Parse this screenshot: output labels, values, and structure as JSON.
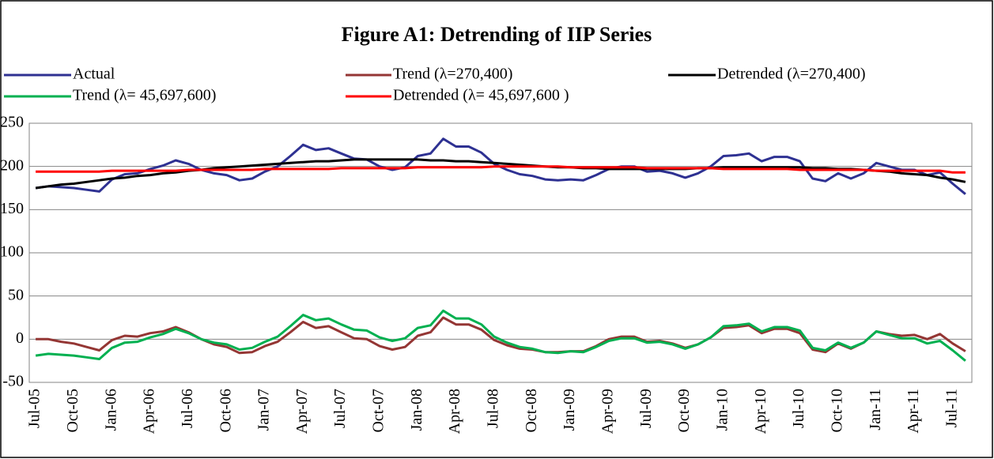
{
  "chart_data": {
    "type": "line",
    "title": "Figure A1: Detrending of IIP Series",
    "categories": [
      "Jul-05",
      null,
      null,
      "Oct-05",
      null,
      null,
      "Jan-06",
      null,
      null,
      "Apr-06",
      null,
      null,
      "Jul-06",
      null,
      null,
      "Oct-06",
      null,
      null,
      "Jan-07",
      null,
      null,
      "Apr-07",
      null,
      null,
      "Jul-07",
      null,
      null,
      "Oct-07",
      null,
      null,
      "Jan-08",
      null,
      null,
      "Apr-08",
      null,
      null,
      "Jul-08",
      null,
      null,
      "Oct-08",
      null,
      null,
      "Jan-09",
      null,
      null,
      "Apr-09",
      null,
      null,
      "Jul-09",
      null,
      null,
      "Oct-09",
      null,
      null,
      "Jan-10",
      null,
      null,
      "Apr-10",
      null,
      null,
      "Jul-10",
      null,
      null,
      "Oct-10",
      null,
      null,
      "Jan-11",
      null,
      null,
      "Apr-11",
      null,
      null,
      "Jul-11",
      null
    ],
    "series": [
      {
        "name": "Actual",
        "color": "#2e3192",
        "values": [
          175,
          177,
          176,
          175,
          173,
          171,
          185,
          191,
          192,
          197,
          201,
          207,
          203,
          196,
          192,
          190,
          184,
          186,
          194,
          200,
          212,
          225,
          219,
          221,
          215,
          209,
          208,
          200,
          196,
          199,
          212,
          215,
          232,
          223,
          223,
          216,
          203,
          196,
          191,
          189,
          185,
          184,
          185,
          184,
          190,
          197,
          200,
          200,
          194,
          195,
          192,
          187,
          192,
          200,
          212,
          213,
          215,
          206,
          211,
          211,
          206,
          186,
          183,
          192,
          186,
          192,
          204,
          200,
          196,
          196,
          190,
          193,
          180,
          168
        ]
      },
      {
        "name": "Trend (λ=270,400)",
        "color": "#943634",
        "values": [
          0,
          0,
          -3,
          -5,
          -9,
          -13,
          -1,
          4,
          3,
          7,
          9,
          14,
          8,
          0,
          -6,
          -9,
          -16,
          -15,
          -8,
          -3,
          8,
          20,
          13,
          15,
          8,
          1,
          0,
          -8,
          -12,
          -9,
          4,
          8,
          25,
          17,
          17,
          11,
          -1,
          -7,
          -11,
          -12,
          -15,
          -15,
          -14,
          -14,
          -8,
          0,
          3,
          3,
          -3,
          -2,
          -5,
          -10,
          -6,
          2,
          13,
          14,
          16,
          7,
          12,
          12,
          7,
          -12,
          -15,
          -5,
          -11,
          -4,
          9,
          6,
          4,
          5,
          0,
          6,
          -5,
          -14
        ]
      },
      {
        "name": "Detrended (λ=270,400)",
        "color": "#000000",
        "values": [
          175,
          177,
          179,
          180,
          182,
          184,
          186,
          187,
          189,
          190,
          192,
          193,
          195,
          196,
          198,
          199,
          200,
          201,
          202,
          203,
          204,
          205,
          206,
          206,
          207,
          208,
          208,
          208,
          208,
          208,
          208,
          207,
          207,
          206,
          206,
          205,
          204,
          203,
          202,
          201,
          200,
          199,
          199,
          198,
          198,
          197,
          197,
          197,
          197,
          197,
          197,
          197,
          198,
          198,
          199,
          199,
          199,
          199,
          199,
          199,
          199,
          198,
          198,
          197,
          197,
          196,
          195,
          194,
          192,
          191,
          190,
          187,
          185,
          182
        ]
      },
      {
        "name": "Trend (λ= 45,697,600)",
        "color": "#00b050",
        "values": [
          -19,
          -17,
          -18,
          -19,
          -21,
          -23,
          -10,
          -4,
          -3,
          2,
          6,
          12,
          7,
          0,
          -4,
          -6,
          -12,
          -10,
          -3,
          3,
          15,
          28,
          22,
          24,
          17,
          11,
          10,
          2,
          -2,
          1,
          13,
          16,
          33,
          24,
          24,
          17,
          3,
          -4,
          -9,
          -11,
          -15,
          -16,
          -14,
          -15,
          -9,
          -2,
          1,
          1,
          -4,
          -3,
          -6,
          -11,
          -6,
          2,
          15,
          16,
          18,
          9,
          14,
          14,
          10,
          -10,
          -13,
          -4,
          -10,
          -4,
          9,
          5,
          1,
          1,
          -5,
          -2,
          -13,
          -25
        ]
      },
      {
        "name": "Detrended (λ= 45,697,600 )",
        "color": "#ff0000",
        "values": [
          194,
          194,
          194,
          194,
          194,
          194,
          195,
          195,
          195,
          195,
          195,
          195,
          196,
          196,
          196,
          196,
          196,
          196,
          197,
          197,
          197,
          197,
          197,
          197,
          198,
          198,
          198,
          198,
          198,
          198,
          199,
          199,
          199,
          199,
          199,
          199,
          200,
          200,
          200,
          200,
          200,
          200,
          199,
          199,
          199,
          199,
          199,
          199,
          198,
          198,
          198,
          198,
          198,
          198,
          197,
          197,
          197,
          197,
          197,
          197,
          196,
          196,
          196,
          196,
          196,
          196,
          195,
          195,
          195,
          195,
          195,
          195,
          193,
          193
        ]
      }
    ],
    "ylim": [
      -50,
      250
    ],
    "yticks": [
      -50,
      0,
      50,
      100,
      150,
      200,
      250
    ],
    "grid": true
  }
}
